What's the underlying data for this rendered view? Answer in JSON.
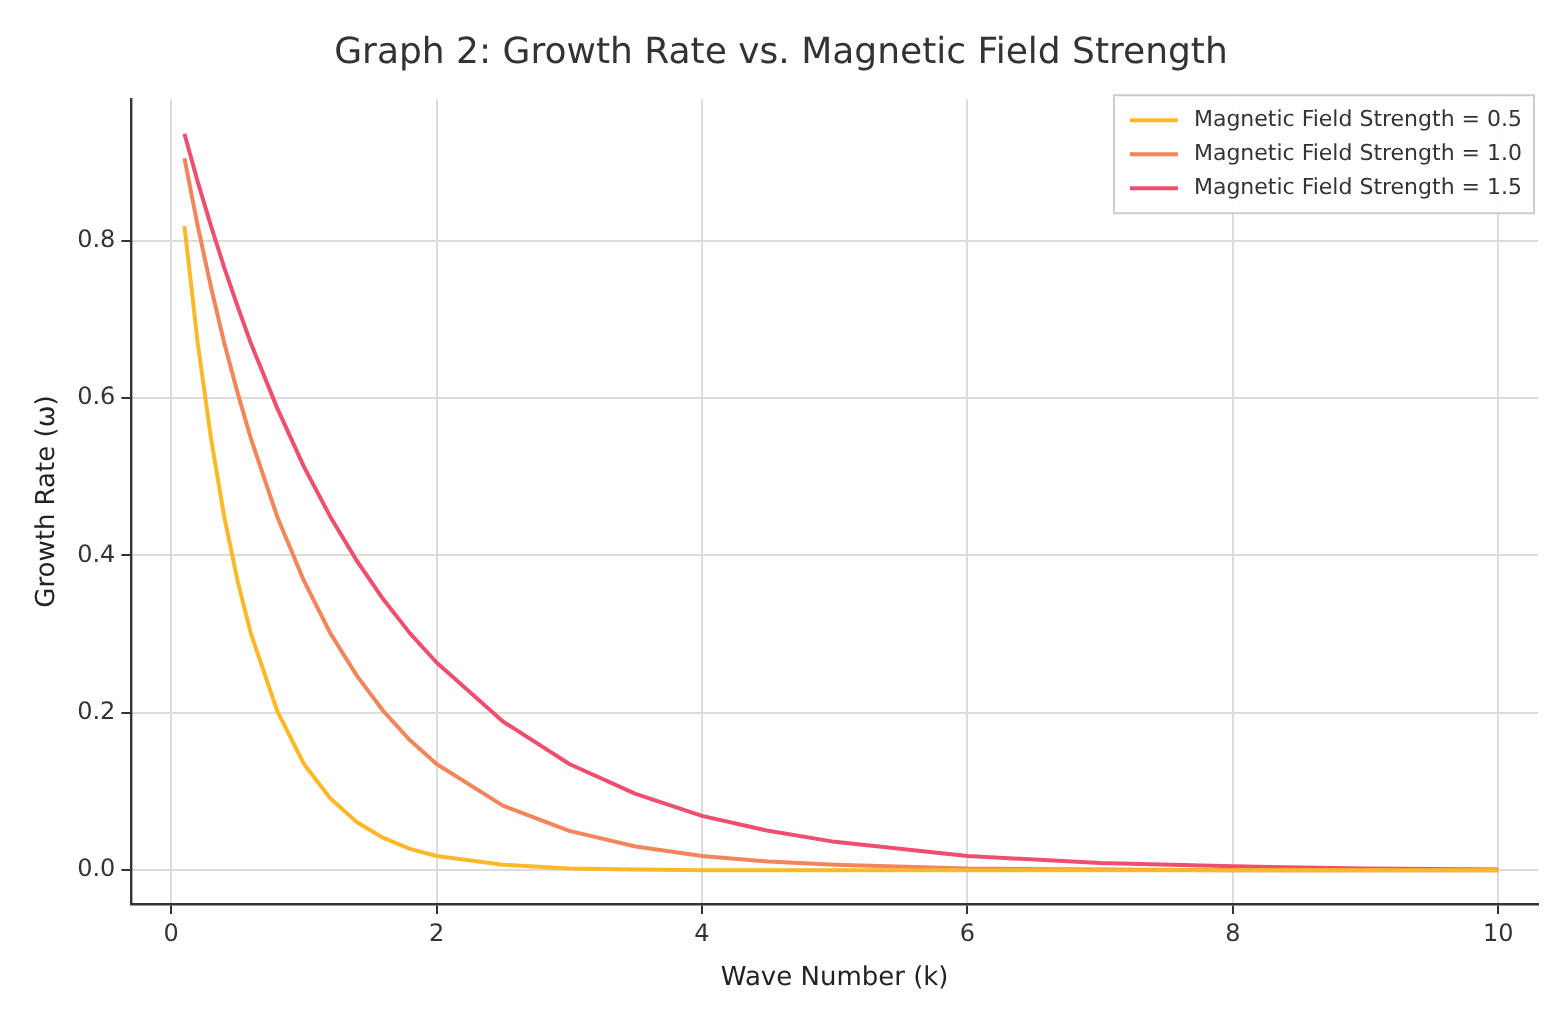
{
  "chart_data": {
    "type": "line",
    "title": "Graph 2: Growth Rate vs. Magnetic Field Strength",
    "xlabel": "Wave Number (k)",
    "ylabel": "Growth Rate (ω)",
    "x": [
      0.1,
      0.2,
      0.3,
      0.4,
      0.5,
      0.6,
      0.8,
      1,
      1.2,
      1.4,
      1.6,
      1.8,
      2,
      2.5,
      3,
      3.5,
      4,
      4.5,
      5,
      6,
      7,
      8,
      9,
      10
    ],
    "series": [
      {
        "name": "Magnetic Field Strength = 0.5",
        "color": "#fbb829",
        "values": [
          0.819,
          0.67,
          0.549,
          0.449,
          0.368,
          0.301,
          0.202,
          0.135,
          0.091,
          0.061,
          0.041,
          0.027,
          0.018,
          0.007,
          0.002,
          0.001,
          0,
          0,
          0,
          0,
          0,
          0,
          0,
          0
        ]
      },
      {
        "name": "Magnetic Field Strength = 1.0",
        "color": "#f2855a",
        "values": [
          0.905,
          0.819,
          0.741,
          0.67,
          0.607,
          0.549,
          0.449,
          0.368,
          0.301,
          0.247,
          0.202,
          0.165,
          0.135,
          0.082,
          0.05,
          0.03,
          0.018,
          0.011,
          0.007,
          0.002,
          0.001,
          0,
          0,
          0
        ]
      },
      {
        "name": "Magnetic Field Strength = 1.5",
        "color": "#ef4f6f",
        "values": [
          0.936,
          0.875,
          0.819,
          0.766,
          0.717,
          0.67,
          0.587,
          0.513,
          0.449,
          0.393,
          0.344,
          0.301,
          0.264,
          0.189,
          0.135,
          0.097,
          0.069,
          0.05,
          0.036,
          0.018,
          0.009,
          0.005,
          0.002,
          0.001
        ]
      }
    ],
    "xlim": [
      -0.3,
      10.3
    ],
    "xticks": [
      0,
      2,
      4,
      6,
      8,
      10
    ],
    "ylim": [
      -0.043,
      0.98
    ],
    "yticks": [
      {
        "value": 0,
        "label": "0.0"
      },
      0.2,
      0.4,
      0.6,
      0.8
    ],
    "grid": true,
    "legend": "top right",
    "marker": "none",
    "line_style": "solid"
  }
}
